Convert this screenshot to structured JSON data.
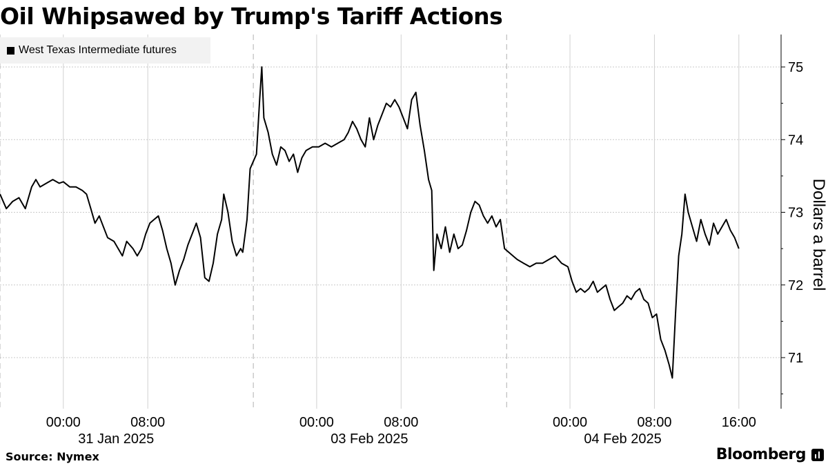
{
  "chart_data": {
    "type": "line",
    "title": "Oil Whipsawed by Trump's Tariff Actions",
    "ylabel": "Dollars a barrel",
    "xlabel": "",
    "ylim": [
      70.5,
      75.5
    ],
    "y_ticks": [
      71,
      72,
      73,
      74,
      75
    ],
    "x_ticks": [
      {
        "label": "00:00",
        "t": 6.0
      },
      {
        "label": "08:00",
        "t": 14.0
      },
      {
        "label": "00:00",
        "t": 30.0
      },
      {
        "label": "08:00",
        "t": 38.0
      },
      {
        "label": "00:00",
        "t": 54.0
      },
      {
        "label": "08:00",
        "t": 62.0
      },
      {
        "label": "16:00",
        "t": 70.0
      }
    ],
    "date_labels": [
      {
        "label": "31 Jan 2025",
        "t": 11.0
      },
      {
        "label": "03 Feb 2025",
        "t": 35.0
      },
      {
        "label": "04 Feb 2025",
        "t": 59.0
      }
    ],
    "grid": true,
    "legend_position": "top-left",
    "series": [
      {
        "name": "West Texas Intermediate futures",
        "color": "#000000",
        "points": [
          [
            0.0,
            73.25
          ],
          [
            0.6,
            73.05
          ],
          [
            1.2,
            73.15
          ],
          [
            1.8,
            73.2
          ],
          [
            2.4,
            73.05
          ],
          [
            3.0,
            73.35
          ],
          [
            3.4,
            73.45
          ],
          [
            3.8,
            73.35
          ],
          [
            4.4,
            73.4
          ],
          [
            5.0,
            73.45
          ],
          [
            5.6,
            73.4
          ],
          [
            6.0,
            73.42
          ],
          [
            6.6,
            73.35
          ],
          [
            7.2,
            73.35
          ],
          [
            7.8,
            73.3
          ],
          [
            8.2,
            73.25
          ],
          [
            8.6,
            73.05
          ],
          [
            9.0,
            72.85
          ],
          [
            9.4,
            72.95
          ],
          [
            9.8,
            72.8
          ],
          [
            10.2,
            72.65
          ],
          [
            10.8,
            72.6
          ],
          [
            11.2,
            72.5
          ],
          [
            11.6,
            72.4
          ],
          [
            12.0,
            72.6
          ],
          [
            12.6,
            72.5
          ],
          [
            13.0,
            72.4
          ],
          [
            13.4,
            72.5
          ],
          [
            13.8,
            72.7
          ],
          [
            14.2,
            72.85
          ],
          [
            14.6,
            72.9
          ],
          [
            15.0,
            72.95
          ],
          [
            15.4,
            72.75
          ],
          [
            15.8,
            72.5
          ],
          [
            16.2,
            72.3
          ],
          [
            16.6,
            72.0
          ],
          [
            17.0,
            72.2
          ],
          [
            17.4,
            72.35
          ],
          [
            17.8,
            72.55
          ],
          [
            18.2,
            72.7
          ],
          [
            18.6,
            72.85
          ],
          [
            19.0,
            72.65
          ],
          [
            19.4,
            72.1
          ],
          [
            19.8,
            72.05
          ],
          [
            20.2,
            72.3
          ],
          [
            20.6,
            72.7
          ],
          [
            21.0,
            72.9
          ],
          [
            21.2,
            73.25
          ],
          [
            21.6,
            73.0
          ],
          [
            22.0,
            72.6
          ],
          [
            22.4,
            72.4
          ],
          [
            22.8,
            72.5
          ],
          [
            23.0,
            72.45
          ],
          [
            23.4,
            72.9
          ],
          [
            23.7,
            73.6
          ],
          [
            24.0,
            73.7
          ],
          [
            24.3,
            73.8
          ],
          [
            24.6,
            74.55
          ],
          [
            24.8,
            75.0
          ],
          [
            25.0,
            74.3
          ],
          [
            25.4,
            74.1
          ],
          [
            25.8,
            73.8
          ],
          [
            26.2,
            73.65
          ],
          [
            26.6,
            73.9
          ],
          [
            27.0,
            73.85
          ],
          [
            27.4,
            73.7
          ],
          [
            27.8,
            73.8
          ],
          [
            28.2,
            73.55
          ],
          [
            28.6,
            73.75
          ],
          [
            29.0,
            73.85
          ],
          [
            29.6,
            73.9
          ],
          [
            30.2,
            73.9
          ],
          [
            30.8,
            73.95
          ],
          [
            31.4,
            73.9
          ],
          [
            32.0,
            73.95
          ],
          [
            32.6,
            74.0
          ],
          [
            33.0,
            74.1
          ],
          [
            33.4,
            74.25
          ],
          [
            33.8,
            74.15
          ],
          [
            34.2,
            74.0
          ],
          [
            34.6,
            73.9
          ],
          [
            35.0,
            74.3
          ],
          [
            35.4,
            74.0
          ],
          [
            35.8,
            74.2
          ],
          [
            36.2,
            74.35
          ],
          [
            36.6,
            74.5
          ],
          [
            37.0,
            74.45
          ],
          [
            37.4,
            74.55
          ],
          [
            37.8,
            74.45
          ],
          [
            38.2,
            74.3
          ],
          [
            38.6,
            74.15
          ],
          [
            39.0,
            74.55
          ],
          [
            39.4,
            74.65
          ],
          [
            39.8,
            74.2
          ],
          [
            40.2,
            73.85
          ],
          [
            40.6,
            73.45
          ],
          [
            40.9,
            73.3
          ],
          [
            41.1,
            72.2
          ],
          [
            41.4,
            72.7
          ],
          [
            41.8,
            72.5
          ],
          [
            42.2,
            72.8
          ],
          [
            42.6,
            72.45
          ],
          [
            43.0,
            72.7
          ],
          [
            43.4,
            72.5
          ],
          [
            43.8,
            72.55
          ],
          [
            44.2,
            72.75
          ],
          [
            44.6,
            73.0
          ],
          [
            45.0,
            73.15
          ],
          [
            45.4,
            73.1
          ],
          [
            45.8,
            72.95
          ],
          [
            46.2,
            72.85
          ],
          [
            46.6,
            72.95
          ],
          [
            47.0,
            72.8
          ],
          [
            47.4,
            72.9
          ],
          [
            47.8,
            72.5
          ],
          [
            48.2,
            72.45
          ],
          [
            48.6,
            72.4
          ],
          [
            49.0,
            72.35
          ],
          [
            49.6,
            72.3
          ],
          [
            50.2,
            72.25
          ],
          [
            50.8,
            72.3
          ],
          [
            51.4,
            72.3
          ],
          [
            52.0,
            72.35
          ],
          [
            52.6,
            72.4
          ],
          [
            53.2,
            72.3
          ],
          [
            53.8,
            72.25
          ],
          [
            54.2,
            72.05
          ],
          [
            54.6,
            71.9
          ],
          [
            55.0,
            71.95
          ],
          [
            55.4,
            71.9
          ],
          [
            55.8,
            71.95
          ],
          [
            56.2,
            72.05
          ],
          [
            56.6,
            71.9
          ],
          [
            57.0,
            71.95
          ],
          [
            57.4,
            72.0
          ],
          [
            57.8,
            71.8
          ],
          [
            58.2,
            71.65
          ],
          [
            58.6,
            71.7
          ],
          [
            59.0,
            71.75
          ],
          [
            59.4,
            71.85
          ],
          [
            59.8,
            71.8
          ],
          [
            60.2,
            71.9
          ],
          [
            60.6,
            71.95
          ],
          [
            61.0,
            71.8
          ],
          [
            61.4,
            71.75
          ],
          [
            61.8,
            71.55
          ],
          [
            62.2,
            71.6
          ],
          [
            62.6,
            71.25
          ],
          [
            63.0,
            71.1
          ],
          [
            63.4,
            70.9
          ],
          [
            63.7,
            70.72
          ],
          [
            64.0,
            71.6
          ],
          [
            64.3,
            72.4
          ],
          [
            64.6,
            72.7
          ],
          [
            64.9,
            73.25
          ],
          [
            65.2,
            73.0
          ],
          [
            65.6,
            72.8
          ],
          [
            66.0,
            72.6
          ],
          [
            66.4,
            72.9
          ],
          [
            66.8,
            72.7
          ],
          [
            67.2,
            72.55
          ],
          [
            67.6,
            72.85
          ],
          [
            68.0,
            72.7
          ],
          [
            68.4,
            72.8
          ],
          [
            68.8,
            72.9
          ],
          [
            69.2,
            72.75
          ],
          [
            69.6,
            72.65
          ],
          [
            70.0,
            72.5
          ]
        ]
      }
    ]
  },
  "header": {
    "title": "Oil Whipsawed by Trump's Tariff Actions"
  },
  "legend": {
    "entries": [
      {
        "label": "West Texas Intermediate futures",
        "color": "#000000"
      }
    ]
  },
  "footer": {
    "source": "Source: Nymex",
    "brand": "Bloomberg"
  }
}
